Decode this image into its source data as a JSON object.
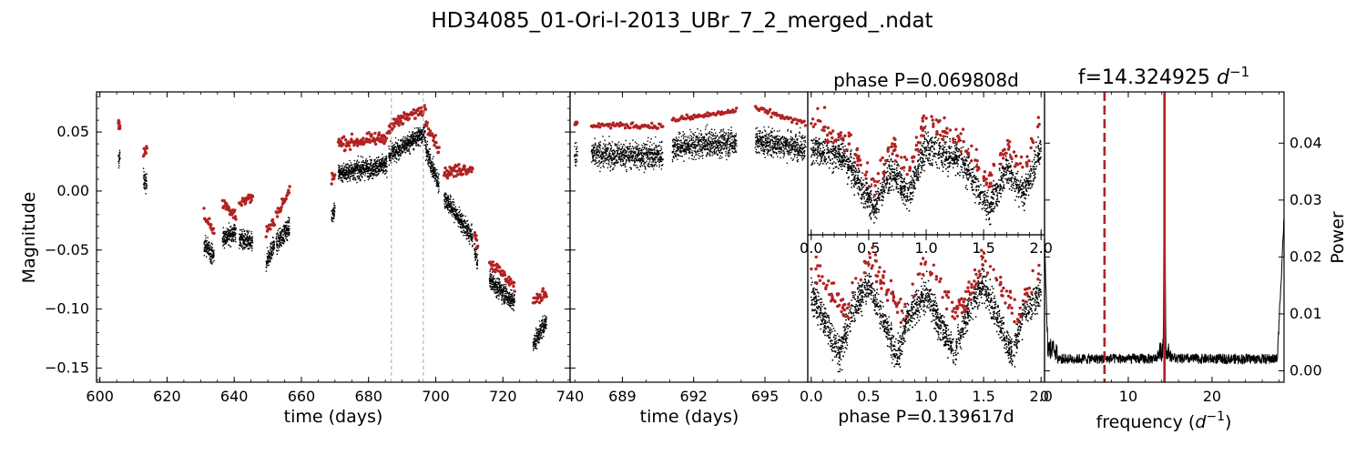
{
  "suptitle": "HD34085_01-Ori-I-2013_UBr_7_2_merged_.ndat",
  "chart_data": [
    {
      "type": "scatter",
      "panel": "lightcurve",
      "xlabel": "time (days)",
      "ylabel": "Magnitude",
      "xlim": [
        599,
        740
      ],
      "ylim": [
        0.084,
        -0.162
      ],
      "y_inverted": true,
      "xticks": [
        600,
        620,
        640,
        660,
        680,
        700,
        720,
        740
      ],
      "xtick_labels": [
        "600",
        "620",
        "640",
        "660",
        "680",
        "700",
        "720",
        "740"
      ],
      "yticks": [
        -0.15,
        -0.1,
        -0.05,
        0.0,
        0.05
      ],
      "ytick_labels": [
        "−0.15",
        "−0.10",
        "−0.05",
        "0.00",
        "0.05"
      ],
      "window_markers_x": [
        686.8,
        696.3
      ],
      "series": [
        {
          "color": "#000000",
          "segments": [
            {
              "t": [
                605.5,
                606.0
              ],
              "mag": [
                0.025,
                0.03
              ]
            },
            {
              "t": [
                613.0,
                614.0
              ],
              "mag": [
                0.01,
                0.005
              ]
            },
            {
              "t": [
                631.0,
                634.0
              ],
              "mag": [
                -0.045,
                -0.055
              ]
            },
            {
              "t": [
                636.5,
                640.5
              ],
              "mag": [
                -0.04,
                -0.035
              ]
            },
            {
              "t": [
                641.5,
                645.5
              ],
              "mag": [
                -0.04,
                -0.045
              ]
            },
            {
              "t": [
                649.5,
                652.0
              ],
              "mag": [
                -0.06,
                -0.045
              ]
            },
            {
              "t": [
                652.5,
                656.5
              ],
              "mag": [
                -0.045,
                -0.03
              ]
            },
            {
              "t": [
                669.0,
                670.0
              ],
              "mag": [
                -0.02,
                -0.015
              ]
            },
            {
              "t": [
                671.0,
                685.5
              ],
              "mag": [
                0.015,
                0.022
              ]
            },
            {
              "t": [
                686.0,
                697.0
              ],
              "mag": [
                0.03,
                0.05
              ]
            },
            {
              "t": [
                697.0,
                701.0
              ],
              "mag": [
                0.035,
                0.005
              ]
            },
            {
              "t": [
                702.5,
                711.0
              ],
              "mag": [
                -0.005,
                -0.04
              ]
            },
            {
              "t": [
                711.5,
                712.5
              ],
              "mag": [
                -0.05,
                -0.06
              ]
            },
            {
              "t": [
                716.0,
                723.5
              ],
              "mag": [
                -0.075,
                -0.095
              ]
            },
            {
              "t": [
                729.0,
                733.0
              ],
              "mag": [
                -0.13,
                -0.11
              ]
            }
          ]
        },
        {
          "color": "#b22222",
          "segments": [
            {
              "t": [
                605.5,
                606.0
              ],
              "mag": [
                0.055,
                0.057
              ]
            },
            {
              "t": [
                613.0,
                614.0
              ],
              "mag": [
                0.03,
                0.037
              ]
            },
            {
              "t": [
                631.0,
                634.0
              ],
              "mag": [
                -0.02,
                -0.035
              ]
            },
            {
              "t": [
                636.5,
                640.5
              ],
              "mag": [
                -0.01,
                -0.02
              ]
            },
            {
              "t": [
                641.5,
                645.5
              ],
              "mag": [
                -0.01,
                -0.005
              ]
            },
            {
              "t": [
                649.5,
                652.0
              ],
              "mag": [
                -0.035,
                -0.025
              ]
            },
            {
              "t": [
                652.5,
                656.5
              ],
              "mag": [
                -0.02,
                0.0
              ]
            },
            {
              "t": [
                669.0,
                670.0
              ],
              "mag": [
                0.01,
                0.015
              ]
            },
            {
              "t": [
                671.0,
                685.5
              ],
              "mag": [
                0.04,
                0.045
              ]
            },
            {
              "t": [
                686.0,
                697.0
              ],
              "mag": [
                0.055,
                0.07
              ]
            },
            {
              "t": [
                697.0,
                701.0
              ],
              "mag": [
                0.06,
                0.035
              ]
            },
            {
              "t": [
                702.5,
                711.0
              ],
              "mag": [
                0.015,
                0.02
              ]
            },
            {
              "t": [
                711.5,
                712.5
              ],
              "mag": [
                -0.035,
                -0.045
              ]
            },
            {
              "t": [
                716.0,
                723.5
              ],
              "mag": [
                -0.06,
                -0.08
              ]
            },
            {
              "t": [
                729.0,
                733.0
              ],
              "mag": [
                -0.095,
                -0.085
              ]
            }
          ]
        }
      ]
    },
    {
      "type": "scatter",
      "panel": "zoom",
      "xlabel": "time (days)",
      "xlim": [
        686.8,
        696.8
      ],
      "ylim": [
        0.084,
        -0.162
      ],
      "xticks": [
        689,
        692,
        695
      ],
      "xtick_labels": [
        "689",
        "692",
        "695"
      ],
      "series": [
        {
          "color": "#000000",
          "segments": [
            {
              "t": [
                687.0,
                687.1
              ],
              "mag": [
                0.03,
                0.03
              ]
            },
            {
              "t": [
                687.7,
                690.7
              ],
              "mag": [
                0.031,
                0.03
              ]
            },
            {
              "t": [
                691.1,
                693.8
              ],
              "mag": [
                0.037,
                0.042
              ]
            },
            {
              "t": [
                694.6,
                696.7
              ],
              "mag": [
                0.042,
                0.037
              ]
            }
          ]
        },
        {
          "color": "#b22222",
          "segments": [
            {
              "t": [
                687.0,
                687.1
              ],
              "mag": [
                0.057,
                0.057
              ]
            },
            {
              "t": [
                687.7,
                690.7
              ],
              "mag": [
                0.056,
                0.055
              ]
            },
            {
              "t": [
                691.1,
                693.8
              ],
              "mag": [
                0.06,
                0.068
              ]
            },
            {
              "t": [
                694.6,
                696.7
              ],
              "mag": [
                0.07,
                0.057
              ]
            }
          ]
        }
      ]
    },
    {
      "type": "scatter",
      "panel": "phase_top",
      "title": "phase P=0.069808d",
      "xlim": [
        -0.03,
        2.03
      ],
      "xticks": [
        0.0,
        0.5,
        1.0,
        1.5,
        2.0
      ],
      "xtick_labels": [
        "0.0",
        "0.5",
        "1.0",
        "1.5",
        "2.0"
      ],
      "phase_profile_black": [
        [
          0.0,
          0.0
        ],
        [
          0.3,
          -0.01
        ],
        [
          0.55,
          -0.06
        ],
        [
          0.7,
          -0.02
        ],
        [
          0.85,
          -0.045
        ],
        [
          1.0,
          0.0
        ]
      ],
      "phase_profile_red": [
        [
          0.0,
          0.03
        ],
        [
          0.3,
          0.01
        ],
        [
          0.55,
          -0.035
        ],
        [
          0.7,
          0.0
        ],
        [
          0.85,
          -0.02
        ],
        [
          1.0,
          0.03
        ]
      ]
    },
    {
      "type": "scatter",
      "panel": "phase_bottom",
      "xlabel": "phase P=0.139617d",
      "xlim": [
        -0.03,
        2.03
      ],
      "xticks": [
        0.0,
        0.5,
        1.0,
        1.5,
        2.0
      ],
      "xtick_labels": [
        "0.0",
        "0.5",
        "1.0",
        "1.5",
        "2.0"
      ],
      "phase_profile_black": [
        [
          0.0,
          0.0
        ],
        [
          0.25,
          -0.06
        ],
        [
          0.35,
          -0.02
        ],
        [
          0.5,
          0.01
        ],
        [
          0.75,
          -0.06
        ],
        [
          0.85,
          -0.02
        ],
        [
          1.0,
          0.0
        ]
      ],
      "phase_profile_red": [
        [
          0.0,
          0.03
        ],
        [
          0.3,
          -0.02
        ],
        [
          0.5,
          0.035
        ],
        [
          0.8,
          -0.02
        ],
        [
          1.0,
          0.03
        ]
      ]
    },
    {
      "type": "line",
      "panel": "periodogram",
      "title": "f=14.324925 d^-1",
      "xlabel": "frequency (d^-1)",
      "ylabel": "Power",
      "xlim": [
        0,
        28.6
      ],
      "ylim": [
        -0.002,
        0.049
      ],
      "xticks": [
        0,
        10,
        20
      ],
      "xtick_labels": [
        "0",
        "10",
        "20"
      ],
      "yticks": [
        0.0,
        0.01,
        0.02,
        0.03,
        0.04
      ],
      "ytick_labels": [
        "0.00",
        "0.01",
        "0.02",
        "0.03",
        "0.04"
      ],
      "peak_frequency": 14.324925,
      "half_frequency": 7.1625,
      "peak_power": 0.048,
      "noise_level": 0.002,
      "line_color": "#000000",
      "marker_color": "#b22222"
    }
  ]
}
